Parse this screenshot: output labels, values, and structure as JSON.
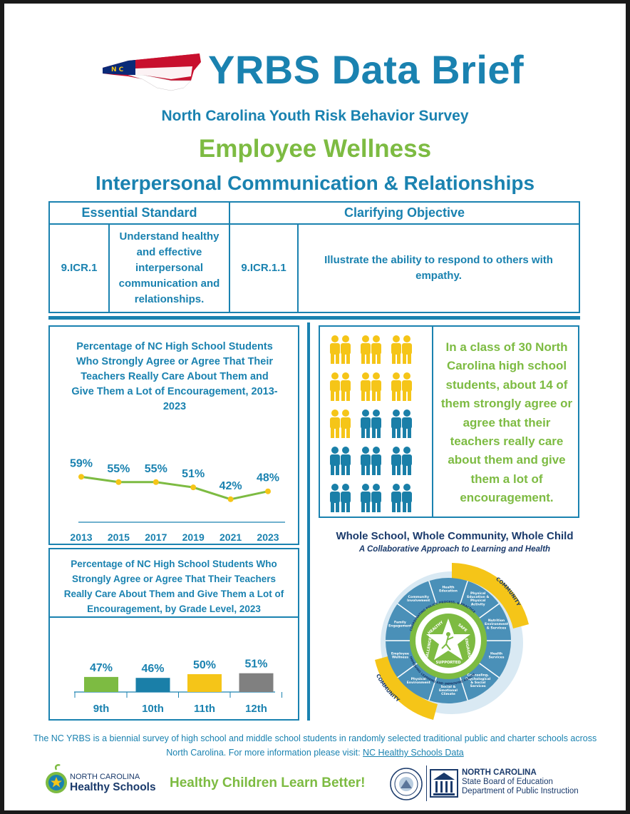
{
  "header": {
    "title": "YRBS Data Brief",
    "subtitle": "North Carolina Youth Risk Behavior Survey",
    "topic": "Employee Wellness",
    "subtopic": "Interpersonal Communication & Relationships",
    "map_letters": "N C"
  },
  "standards": {
    "col_headers": [
      "Essential Standard",
      "Clarifying Objective"
    ],
    "essential_code": "9.ICR.1",
    "essential_text": "Understand healthy and effective interpersonal communication and relationships.",
    "objective_code": "9.ICR.1.1",
    "objective_text": "Illustrate the ability to respond to others with empathy."
  },
  "chart_data": [
    {
      "type": "line",
      "title": "Percentage of NC High School Students Who Strongly Agree or Agree That Their Teachers Really Care About Them and Give Them a Lot of Encouragement, 2013-2023",
      "x": [
        "2013",
        "2015",
        "2017",
        "2019",
        "2021",
        "2023"
      ],
      "values": [
        59,
        55,
        55,
        51,
        42,
        48
      ],
      "labels": [
        "59%",
        "55%",
        "55%",
        "51%",
        "42%",
        "48%"
      ],
      "ylim": [
        30,
        70
      ],
      "color": "#7dbb42"
    },
    {
      "type": "bar",
      "title": "Percentage of NC High School Students Who Strongly Agree or Agree That Their Teachers Really Care About Them and Give Them a Lot of Encouragement, by Grade Level, 2023",
      "categories": [
        "9th",
        "10th",
        "11th",
        "12th"
      ],
      "values": [
        47,
        46,
        50,
        51
      ],
      "labels": [
        "47%",
        "46%",
        "50%",
        "51%"
      ],
      "colors": [
        "#7dbb42",
        "#1a7fa8",
        "#f5c518",
        "#808080"
      ],
      "ylim": [
        0,
        100
      ]
    }
  ],
  "pictogram": {
    "total": 30,
    "highlighted": 14,
    "highlight_color": "#f5c518",
    "base_color": "#1a7fa8",
    "text": "In a class of 30 North Carolina high school students, about 14 of them strongly agree or agree that their teachers really care about them and give them a lot of encouragement."
  },
  "wscc": {
    "title": "Whole School, Whole Community, Whole Child",
    "subtitle": "A Collaborative Approach to Learning and Health",
    "community_label": "COMMUNITY",
    "center_tenets": [
      "HEALTHY",
      "SAFE",
      "ENGAGED",
      "SUPPORTED",
      "CHALLENGED"
    ],
    "ring_text_top": "COORDINATING POLICY, PROCESS, & PRACTICE",
    "ring_text_bottom": "IMPROVING LEARNING AND IMPROVING HEALTH",
    "segments": [
      "Health Education",
      "Physical Education & Physical Activity",
      "Nutrition Environment & Services",
      "Health Services",
      "Counseling, Psychological & Social Services",
      "Social & Emotional Climate",
      "Physical Environment",
      "Employee Wellness",
      "Family Engagement",
      "Community Involvement"
    ]
  },
  "footer": {
    "text": "The NC YRBS is a biennial survey of high school and middle school students in randomly selected traditional public and charter schools across North Carolina. For more information please visit:",
    "link_text": "NC Healthy Schools Data",
    "slogan": "Healthy Children Learn Better!",
    "nchs_line1": "NORTH CAROLINA",
    "nchs_line2": "Healthy Schools",
    "dpi_line1": "NORTH CAROLINA",
    "dpi_line2": "State Board of Education",
    "dpi_line3": "Department of Public Instruction"
  },
  "colors": {
    "blue": "#1a82b0",
    "green": "#7dbb42",
    "navy": "#1a3a6b",
    "yellow": "#f5c518"
  }
}
